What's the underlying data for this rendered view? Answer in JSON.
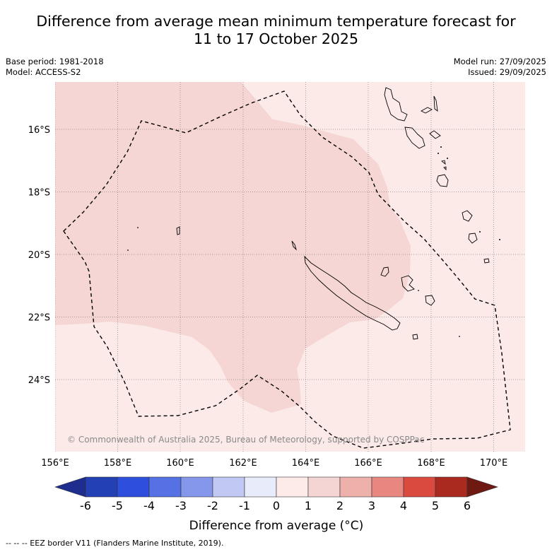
{
  "title": {
    "line1": "Difference from average mean minimum temperature forecast for",
    "line2": "11 to 17 October 2025"
  },
  "info": {
    "base_period": "Base period: 1981-2018",
    "model": "Model: ACCESS-S2",
    "model_run": "Model run: 27/09/2025",
    "issued": "Issued: 29/09/2025"
  },
  "map": {
    "lat_labels": [
      "16°S",
      "18°S",
      "20°S",
      "22°S",
      "24°S"
    ],
    "lon_labels": [
      "156°E",
      "158°E",
      "160°E",
      "162°E",
      "164°E",
      "166°E",
      "168°E",
      "170°E"
    ],
    "copyright": "© Commonwealth of Australia 2025, Bureau of Meteorology, supported by COSPPac",
    "colors": {
      "band_0_1": "#fbeae8",
      "band_1_2": "#f5d6d5",
      "eez_line": "#000000",
      "grid": "#555555"
    }
  },
  "legend": {
    "ticks": [
      "-6",
      "-5",
      "-4",
      "-3",
      "-2",
      "-1",
      "0",
      "1",
      "2",
      "3",
      "4",
      "5",
      "6"
    ],
    "colors": [
      "#1f2d8f",
      "#2340b5",
      "#2e4fde",
      "#5671e3",
      "#8497ea",
      "#c0c8f3",
      "#e8ebfa",
      "#fcebe8",
      "#f5d5d4",
      "#eeb0ab",
      "#e7877f",
      "#db4a3f",
      "#ab2a20",
      "#6e1a12"
    ],
    "label": "Difference from average (°C)"
  },
  "footer": "-- -- -- EEZ border V11 (Flanders Marine Institute, 2019)."
}
